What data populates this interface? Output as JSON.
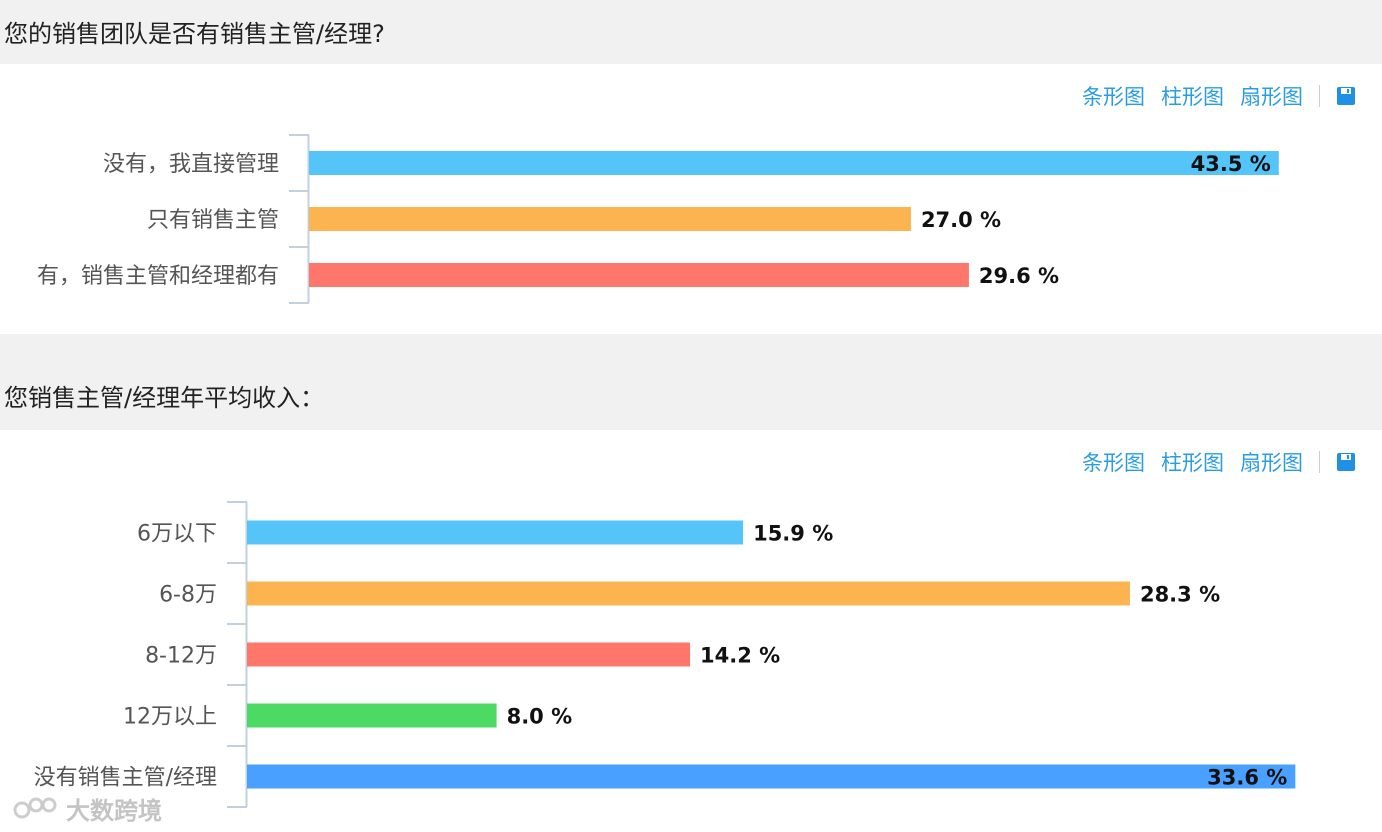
{
  "toolbar": {
    "bar_label": "条形图",
    "column_label": "柱形图",
    "pie_label": "扇形图",
    "save_icon": "save-icon"
  },
  "watermark": {
    "text": "大数跨境"
  },
  "chart_data": [
    {
      "type": "bar",
      "title": "您的销售团队是否有销售主管/经理?",
      "categories": [
        "没有，我直接管理",
        "只有销售主管",
        "有，销售主管和经理都有"
      ],
      "values": [
        43.5,
        27.0,
        29.6
      ],
      "value_labels": [
        "43.5 %",
        "27.0 %",
        "29.6 %"
      ],
      "colors": [
        "#55c4f8",
        "#fbb450",
        "#ff776b"
      ],
      "xlim": [
        0,
        46.2
      ],
      "orientation": "horizontal"
    },
    {
      "type": "bar",
      "title": "您销售主管/经理年平均收入：",
      "categories": [
        "6万以下",
        "6-8万",
        "8-12万",
        "12万以上",
        "没有销售主管/经理"
      ],
      "values": [
        15.9,
        28.3,
        14.2,
        8.0,
        33.6
      ],
      "value_labels": [
        "15.9 %",
        "28.3 %",
        "14.2 %",
        "8.0 %",
        "33.6 %"
      ],
      "colors": [
        "#55c4f8",
        "#fbb450",
        "#ff776b",
        "#4cd964",
        "#4aa0ff"
      ],
      "xlim": [
        0,
        35.0
      ],
      "orientation": "horizontal"
    }
  ]
}
